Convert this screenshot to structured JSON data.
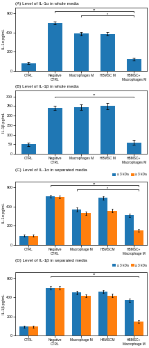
{
  "chart_data": [
    {
      "type": "bar",
      "title": "(A) Level of IL-1α in whole media",
      "y_label": "IL-1α pg/mL",
      "ylim": [
        0,
        660
      ],
      "yticks": [
        0,
        200,
        400,
        600
      ],
      "categories": [
        "CTRL",
        "Negative\nCTRL",
        "Macrophages M",
        "HBMSC M",
        "HBMSC+\nMacrophages M"
      ],
      "values": [
        80,
        500,
        390,
        385,
        120
      ],
      "errors": [
        10,
        12,
        18,
        18,
        15
      ],
      "annotations": [
        {
          "text": "**",
          "from": "Negative\nCTRL",
          "to": "HBMSC+\nMacrophages M",
          "y": 620
        },
        {
          "text": "*",
          "from": "Macrophages M",
          "to": "HBMSC+\nMacrophages M",
          "y": 578
        }
      ]
    },
    {
      "type": "bar",
      "title": "(B) Level of IL-1β in whole media",
      "y_label": "IL-1β pg/mL",
      "ylim": [
        0,
        330
      ],
      "yticks": [
        0,
        50,
        100,
        150,
        200,
        250,
        300
      ],
      "categories": [
        "CTRL",
        "Negative\nCTRL",
        "Macrophages M",
        "HBMSC M",
        "HBMSC+\nMacrophages M"
      ],
      "values": [
        50,
        240,
        245,
        250,
        60
      ],
      "errors": [
        8,
        12,
        15,
        15,
        12
      ],
      "annotations": [
        {
          "text": "**",
          "from": "Negative\nCTRL",
          "to": "HBMSC+\nMacrophages M",
          "y": 300
        }
      ]
    },
    {
      "type": "bar",
      "title": "(C) Level of IL-1α in separated media",
      "y_label": "IL-1α pg/mL",
      "ylim": [
        0,
        660
      ],
      "yticks": [
        0,
        200,
        400,
        600
      ],
      "categories": [
        "CTRL",
        "Negative\nCTRL",
        "Macrophage M",
        "HBMSCM",
        "HBMSC+\nMacrophage M"
      ],
      "series": [
        {
          "name": "≤ 3 kDa",
          "values": [
            95,
            505,
            370,
            490,
            310
          ],
          "errors": [
            10,
            15,
            20,
            18,
            18
          ]
        },
        {
          "name": "≥ 3 kDa",
          "values": [
            95,
            500,
            330,
            355,
            150
          ],
          "errors": [
            10,
            15,
            18,
            18,
            15
          ]
        }
      ],
      "legend": "upper right",
      "annotations": [
        {
          "text": "**",
          "from": "Negative\nCTRL",
          "to": "HBMSC+\nMacrophage M",
          "y": 622
        },
        {
          "text": "*",
          "from": "Macrophage M",
          "to": "HBMSC+\nMacrophage M",
          "y": 576
        }
      ]
    },
    {
      "type": "bar",
      "title": "(D) Level of IL-1β in separated media",
      "y_label": "IL-1β pg/mL",
      "ylim": [
        0,
        660
      ],
      "yticks": [
        0,
        200,
        400,
        600
      ],
      "categories": [
        "CTRL",
        "Negative\nCTRL",
        "Macrophage M",
        "HBMSCM",
        "HBMSC+\nMacrophage M"
      ],
      "series": [
        {
          "name": "≤ 3 kDa",
          "values": [
            95,
            500,
            450,
            460,
            370
          ],
          "errors": [
            10,
            15,
            18,
            18,
            18
          ]
        },
        {
          "name": "≥ 3 kDa",
          "values": [
            95,
            500,
            415,
            420,
            150
          ],
          "errors": [
            10,
            15,
            15,
            15,
            15
          ]
        }
      ],
      "legend": "upper right",
      "annotations": [
        {
          "text": "**",
          "from": "Negative\nCTRL",
          "to": "HBMSC+\nMacrophage M",
          "y": 622
        }
      ]
    }
  ]
}
